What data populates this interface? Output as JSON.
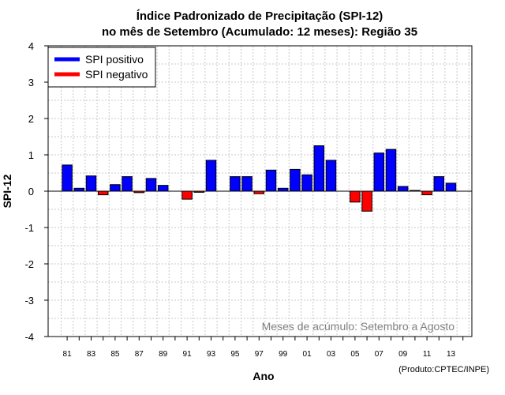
{
  "chart_data": {
    "type": "bar",
    "title_line1": "Índice Padronizado de Precipitação (SPI-12)",
    "title_line2": "no mês de Setembro (Acumulado: 12 meses): Região 35",
    "xlabel": "Ano",
    "ylabel": "SPI-12",
    "ylim": [
      -4,
      4
    ],
    "yticks": [
      4,
      3,
      2,
      1,
      0,
      -1,
      -2,
      -3,
      -4
    ],
    "xtick_labels": [
      "81",
      "83",
      "85",
      "87",
      "89",
      "91",
      "93",
      "95",
      "97",
      "99",
      "01",
      "03",
      "05",
      "07",
      "09",
      "11",
      "13"
    ],
    "categories": [
      "81",
      "82",
      "83",
      "84",
      "85",
      "86",
      "87",
      "88",
      "89",
      "90",
      "91",
      "92",
      "93",
      "94",
      "95",
      "96",
      "97",
      "98",
      "99",
      "00",
      "01",
      "02",
      "03",
      "04",
      "05",
      "06",
      "07",
      "08",
      "09",
      "10",
      "11",
      "12",
      "13",
      "14"
    ],
    "values": [
      0.72,
      0.08,
      0.42,
      -0.1,
      0.18,
      0.4,
      -0.04,
      0.35,
      0.16,
      0.0,
      -0.22,
      -0.03,
      0.85,
      0.0,
      0.4,
      0.4,
      -0.07,
      0.58,
      0.08,
      0.6,
      0.45,
      1.25,
      0.85,
      0.0,
      -0.3,
      -0.55,
      1.05,
      1.15,
      0.13,
      0.02,
      -0.1,
      0.4,
      0.22,
      0.0
    ],
    "grid": true,
    "legend": {
      "position": "top-left",
      "entries": [
        {
          "label": "SPI positivo",
          "color": "#0000ff"
        },
        {
          "label": "SPI negativo",
          "color": "#ff0000"
        }
      ]
    },
    "colors": {
      "positive": "#0000ff",
      "negative": "#ff0000",
      "grid": "#c8c8c8",
      "note": "#808080"
    },
    "annotation": "Meses de acúmulo: Setembro a Agosto",
    "credit": "(Produto:CPTEC/INPE)"
  }
}
